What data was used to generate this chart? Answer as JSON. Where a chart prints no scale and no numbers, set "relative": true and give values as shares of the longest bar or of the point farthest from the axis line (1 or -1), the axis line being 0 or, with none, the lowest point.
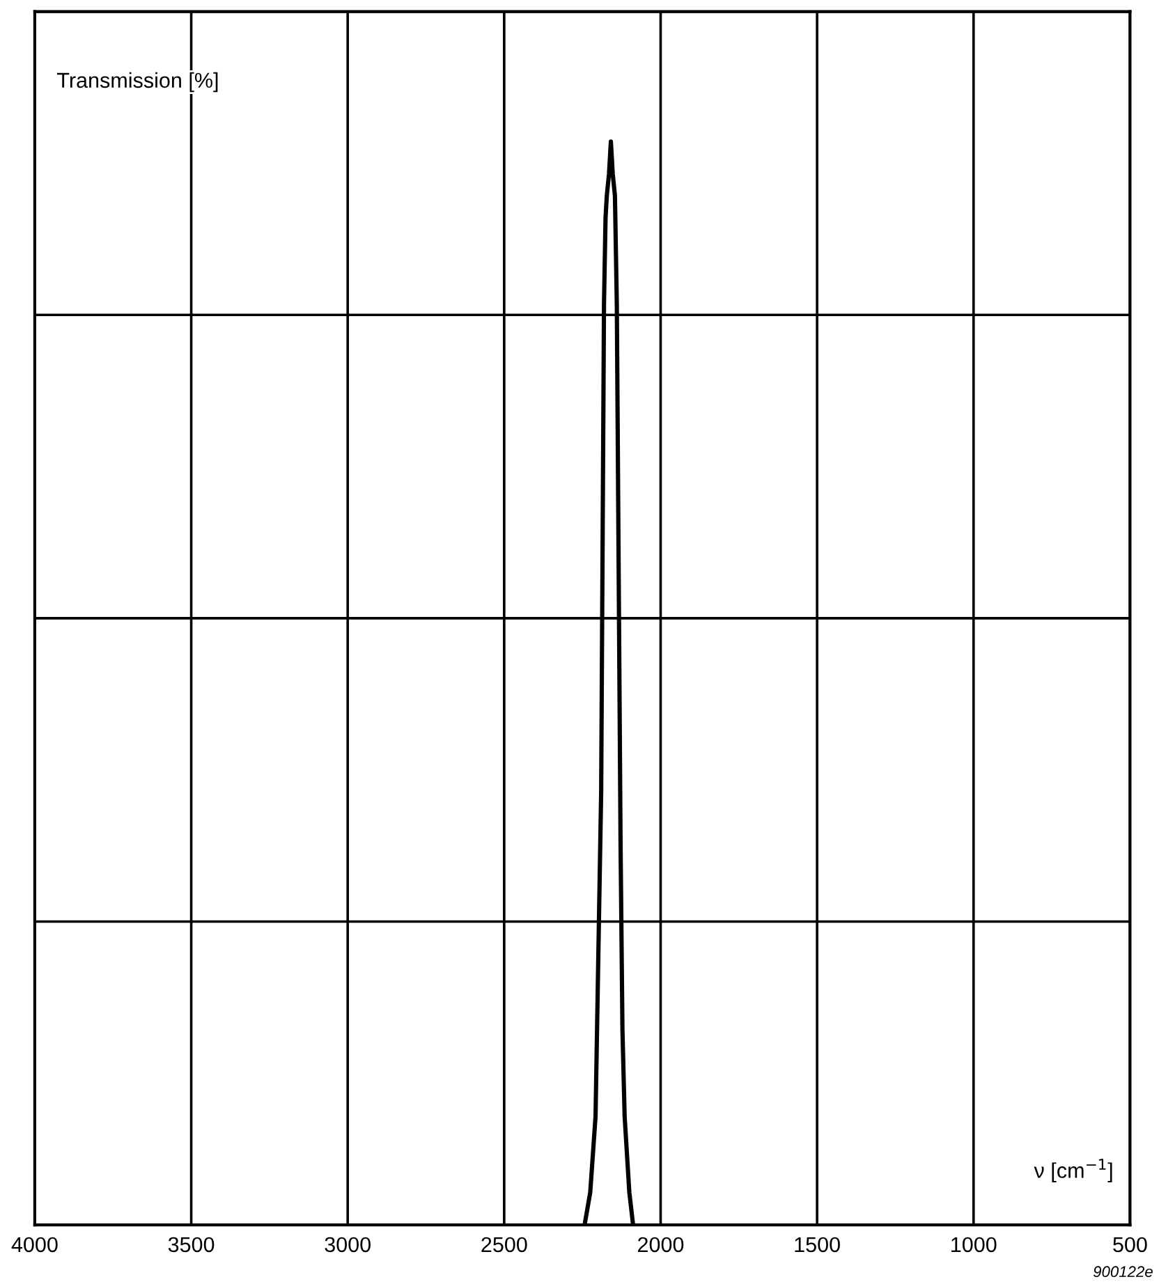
{
  "chart_data": {
    "type": "line",
    "relative": true,
    "xlabel": "ν [cm$^{−1}$]",
    "ylabel": "Transmission [%]",
    "x": [
      2243,
      2225,
      2208,
      2190,
      2181,
      2176,
      2172,
      2165,
      2159,
      2153,
      2146,
      2140,
      2134,
      2128,
      2122,
      2115,
      2100,
      2088
    ],
    "values": [
      0,
      0.03,
      0.1,
      0.4,
      0.85,
      0.93,
      0.95,
      0.97,
      1,
      0.97,
      0.95,
      0.85,
      0.6,
      0.35,
      0.18,
      0.1,
      0.03,
      0
    ],
    "color": "#000000",
    "xlim": [
      4000,
      500
    ],
    "xticks": [
      4000,
      3500,
      3000,
      2500,
      2000,
      1500,
      1000,
      500
    ],
    "grid": true,
    "annotations": [
      "900122e"
    ]
  }
}
